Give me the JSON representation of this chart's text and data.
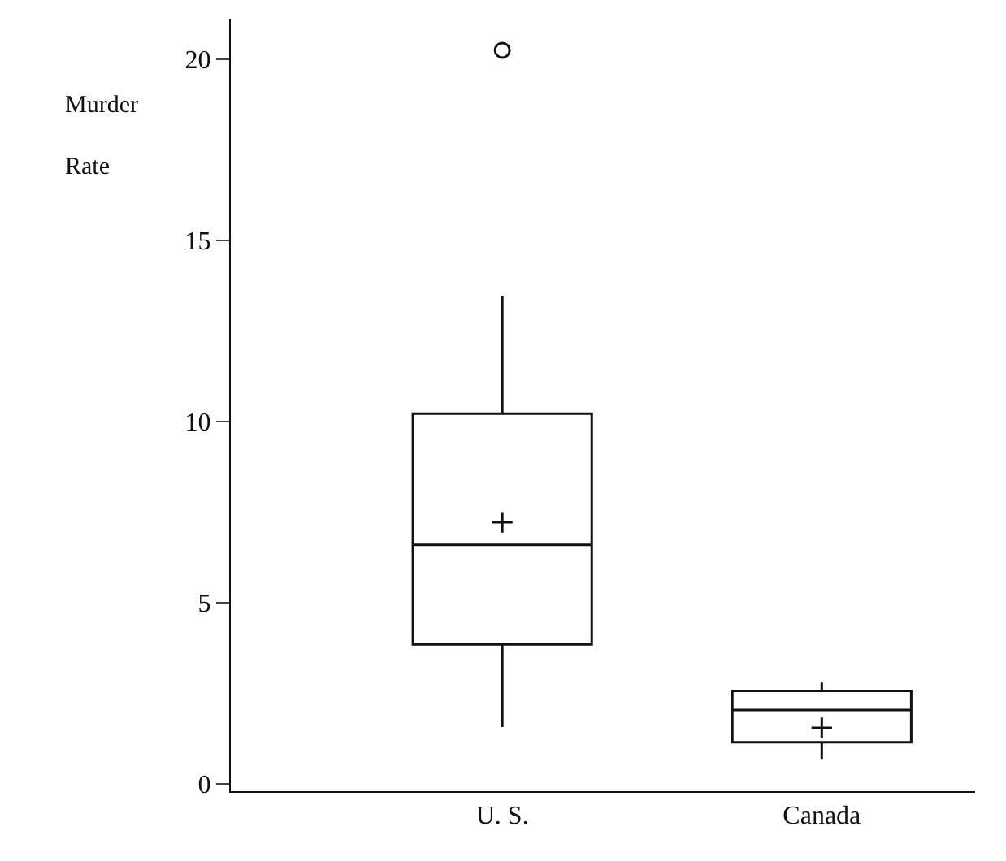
{
  "chart_data": {
    "type": "box",
    "ylabel": "Murder Rate",
    "categories": [
      "U. S.",
      "Canada"
    ],
    "boxes": [
      {
        "low": 1.57,
        "q1": 3.85,
        "median": 6.6,
        "q3": 10.22,
        "high": 13.46,
        "mean": 7.22,
        "outliers": [
          20.25
        ]
      },
      {
        "low": 0.67,
        "q1": 1.15,
        "median": 2.04,
        "q3": 2.57,
        "high": 2.8,
        "mean": 1.55
      }
    ],
    "ylim": [
      -0.2,
      21.1
    ],
    "yticks": [
      0,
      5,
      10,
      15,
      20
    ],
    "grid": false
  }
}
